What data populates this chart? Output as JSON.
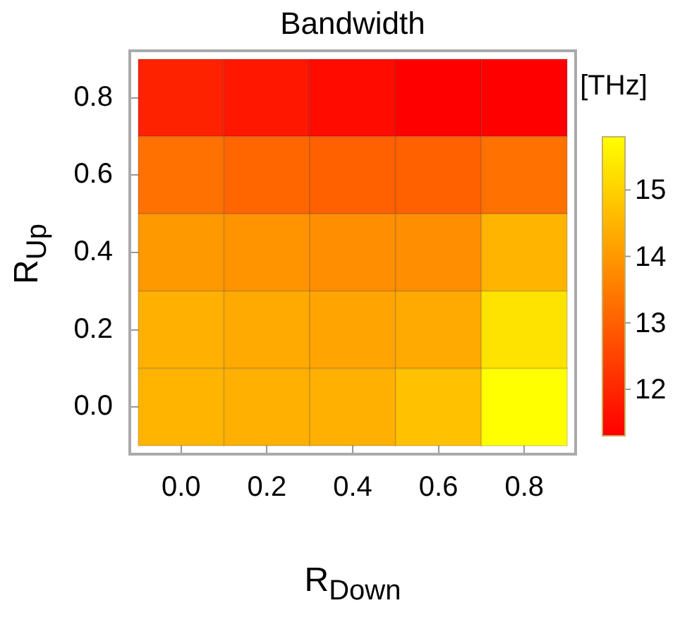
{
  "chart_data": {
    "type": "heatmap",
    "title": "Bandwidth",
    "xlabel": "R$_{Down}$",
    "ylabel": "R$_{Up}$",
    "clabel": "[THz]",
    "categories": [
      "0.0",
      "0.2",
      "0.4",
      "0.6",
      "0.8"
    ],
    "y_categories": [
      "0.8",
      "0.6",
      "0.4",
      "0.2",
      "0.0"
    ],
    "cells": [
      [
        11.9,
        11.7,
        11.5,
        11.3,
        11.3
      ],
      [
        13.3,
        13.1,
        13.0,
        13.0,
        13.3
      ],
      [
        14.0,
        13.9,
        13.8,
        13.8,
        14.5
      ],
      [
        14.4,
        14.3,
        14.2,
        14.3,
        15.3
      ],
      [
        14.5,
        14.4,
        14.4,
        14.7,
        15.8
      ]
    ],
    "clim": [
      11.3,
      15.8
    ],
    "cticks": [
      12,
      13,
      14,
      15
    ]
  }
}
